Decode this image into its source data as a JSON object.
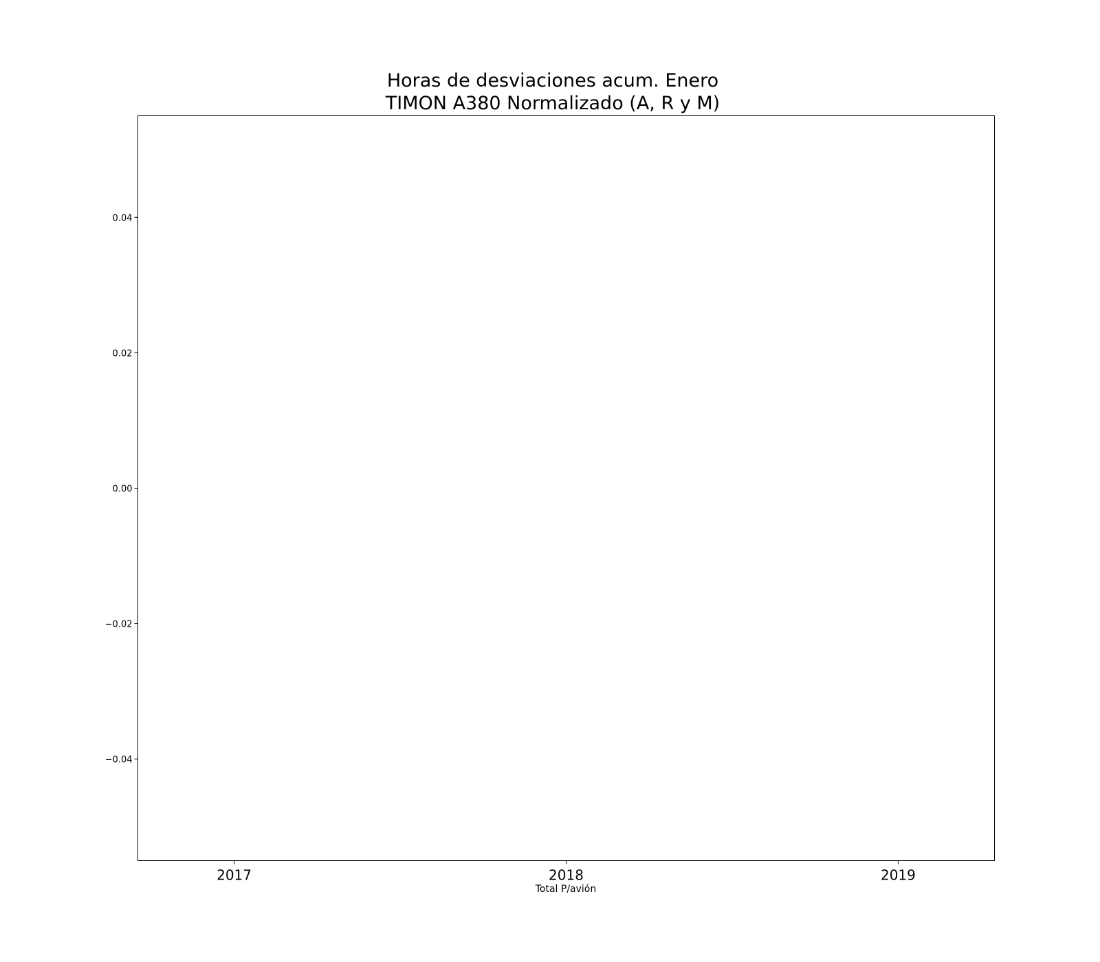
{
  "chart_data": {
    "type": "bar",
    "title_lines": [
      "Horas de desviaciones acum. Enero",
      "TIMON A380 Normalizado (A, R y M)"
    ],
    "xlabel": "Total P/avión",
    "ylabel": "",
    "categories": [
      "2017",
      "2018",
      "2019"
    ],
    "series": [],
    "xlim": [
      2016.71,
      2019.29
    ],
    "ylim": [
      -0.055,
      0.055
    ],
    "y_ticks": [
      0.04,
      0.02,
      0.0,
      -0.02,
      -0.04
    ],
    "y_tick_labels": [
      "0.04",
      "0.02",
      "0.00",
      "−0.02",
      "−0.04"
    ],
    "grid": false,
    "legend": "none"
  }
}
